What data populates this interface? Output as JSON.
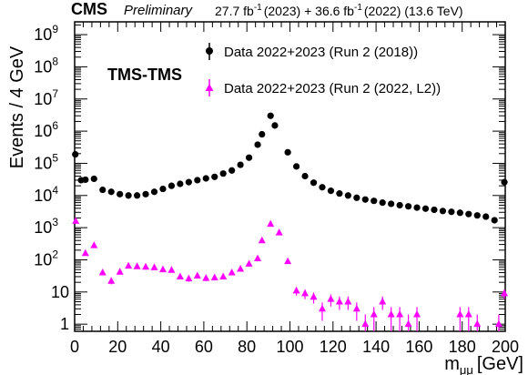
{
  "header": {
    "experiment": "CMS",
    "status": "Preliminary",
    "lumi_2023_value": "27.7 fb",
    "lumi_2023_exp": "-1",
    "lumi_2023_tag": "(2023) + 36.6 fb",
    "lumi_2022_exp": "-1",
    "lumi_2022_tag": "(2022) (13.6 TeV)"
  },
  "chart_data": {
    "type": "scatter",
    "title": "",
    "xlabel_main": "m",
    "xlabel_sub": "μμ",
    "xlabel_unit": "[GeV]",
    "ylabel": "Events / 4 GeV",
    "xlim": [
      0,
      200
    ],
    "ylim": [
      0.6,
      2500000000
    ],
    "log_y": true,
    "grid": false,
    "legend_position": "top-right",
    "category_label": "TMS-TMS",
    "x_ticks": [
      "0",
      "20",
      "40",
      "60",
      "80",
      "100",
      "120",
      "140",
      "160",
      "180",
      "200"
    ],
    "y_ticks": [
      {
        "base": "1",
        "exp": ""
      },
      {
        "base": "10",
        "exp": ""
      },
      {
        "base": "10",
        "exp": "2"
      },
      {
        "base": "10",
        "exp": "3"
      },
      {
        "base": "10",
        "exp": "4"
      },
      {
        "base": "10",
        "exp": "5"
      },
      {
        "base": "10",
        "exp": "6"
      },
      {
        "base": "10",
        "exp": "7"
      },
      {
        "base": "10",
        "exp": "8"
      },
      {
        "base": "10",
        "exp": "9"
      }
    ],
    "series": [
      {
        "name": "Data 2022+2023 (Run 2 (2018))",
        "color": "#000000",
        "marker": "circle",
        "points": [
          [
            0.3,
            190000
          ],
          [
            3,
            30000
          ],
          [
            5,
            31000
          ],
          [
            9,
            33000
          ],
          [
            13,
            15000
          ],
          [
            17,
            13000
          ],
          [
            21,
            11000
          ],
          [
            25,
            10000
          ],
          [
            29,
            10000
          ],
          [
            33,
            11000
          ],
          [
            37,
            13000
          ],
          [
            41,
            16000
          ],
          [
            45,
            20000
          ],
          [
            49,
            23000
          ],
          [
            53,
            26000
          ],
          [
            57,
            30000
          ],
          [
            61,
            34000
          ],
          [
            65,
            38000
          ],
          [
            69,
            48000
          ],
          [
            73,
            60000
          ],
          [
            77,
            90000
          ],
          [
            81,
            150000
          ],
          [
            85,
            380000
          ],
          [
            87,
            800000
          ],
          [
            91,
            3000000
          ],
          [
            93,
            1500000
          ],
          [
            99,
            220000
          ],
          [
            103,
            80000
          ],
          [
            107,
            40000
          ],
          [
            111,
            25000
          ],
          [
            115,
            18000
          ],
          [
            119,
            14000
          ],
          [
            123,
            11500
          ],
          [
            127,
            10000
          ],
          [
            131,
            8500
          ],
          [
            135,
            7500
          ],
          [
            139,
            6800
          ],
          [
            143,
            6000
          ],
          [
            147,
            5500
          ],
          [
            151,
            5000
          ],
          [
            155,
            4600
          ],
          [
            159,
            4200
          ],
          [
            163,
            3900
          ],
          [
            167,
            3600
          ],
          [
            171,
            3300
          ],
          [
            175,
            3100
          ],
          [
            179,
            2900
          ],
          [
            183,
            2650
          ],
          [
            187,
            2400
          ],
          [
            191,
            2200
          ],
          [
            195,
            1700
          ],
          [
            199.6,
            26000
          ]
        ]
      },
      {
        "name": "Data 2022+2023 (Run 2 (2022, L2))",
        "color": "#ff00ff",
        "marker": "triangle",
        "points": [
          [
            0.5,
            1600
          ],
          [
            5,
            160
          ],
          [
            9,
            280
          ],
          [
            13,
            40
          ],
          [
            17,
            22
          ],
          [
            21,
            42
          ],
          [
            25,
            65
          ],
          [
            29,
            62
          ],
          [
            33,
            60
          ],
          [
            37,
            58
          ],
          [
            41,
            50
          ],
          [
            45,
            48
          ],
          [
            49,
            30
          ],
          [
            53,
            26
          ],
          [
            57,
            32
          ],
          [
            61,
            27
          ],
          [
            65,
            28
          ],
          [
            69,
            30
          ],
          [
            73,
            40
          ],
          [
            77,
            52
          ],
          [
            81,
            75
          ],
          [
            85,
            110
          ],
          [
            87,
            400
          ],
          [
            91,
            1300
          ],
          [
            95,
            700
          ],
          [
            99,
            90
          ],
          [
            103,
            11
          ],
          [
            107,
            9
          ],
          [
            111,
            7
          ],
          [
            115,
            3
          ],
          [
            119,
            6
          ],
          [
            123,
            5
          ],
          [
            127,
            5
          ],
          [
            131,
            3
          ],
          [
            135,
            1
          ],
          [
            139,
            2
          ],
          [
            143,
            5
          ],
          [
            147,
            2
          ],
          [
            151,
            2
          ],
          [
            155,
            1
          ],
          [
            159,
            2
          ],
          [
            179,
            2
          ],
          [
            183,
            2
          ],
          [
            187,
            1
          ],
          [
            197,
            1
          ],
          [
            199.6,
            9
          ]
        ]
      }
    ]
  }
}
